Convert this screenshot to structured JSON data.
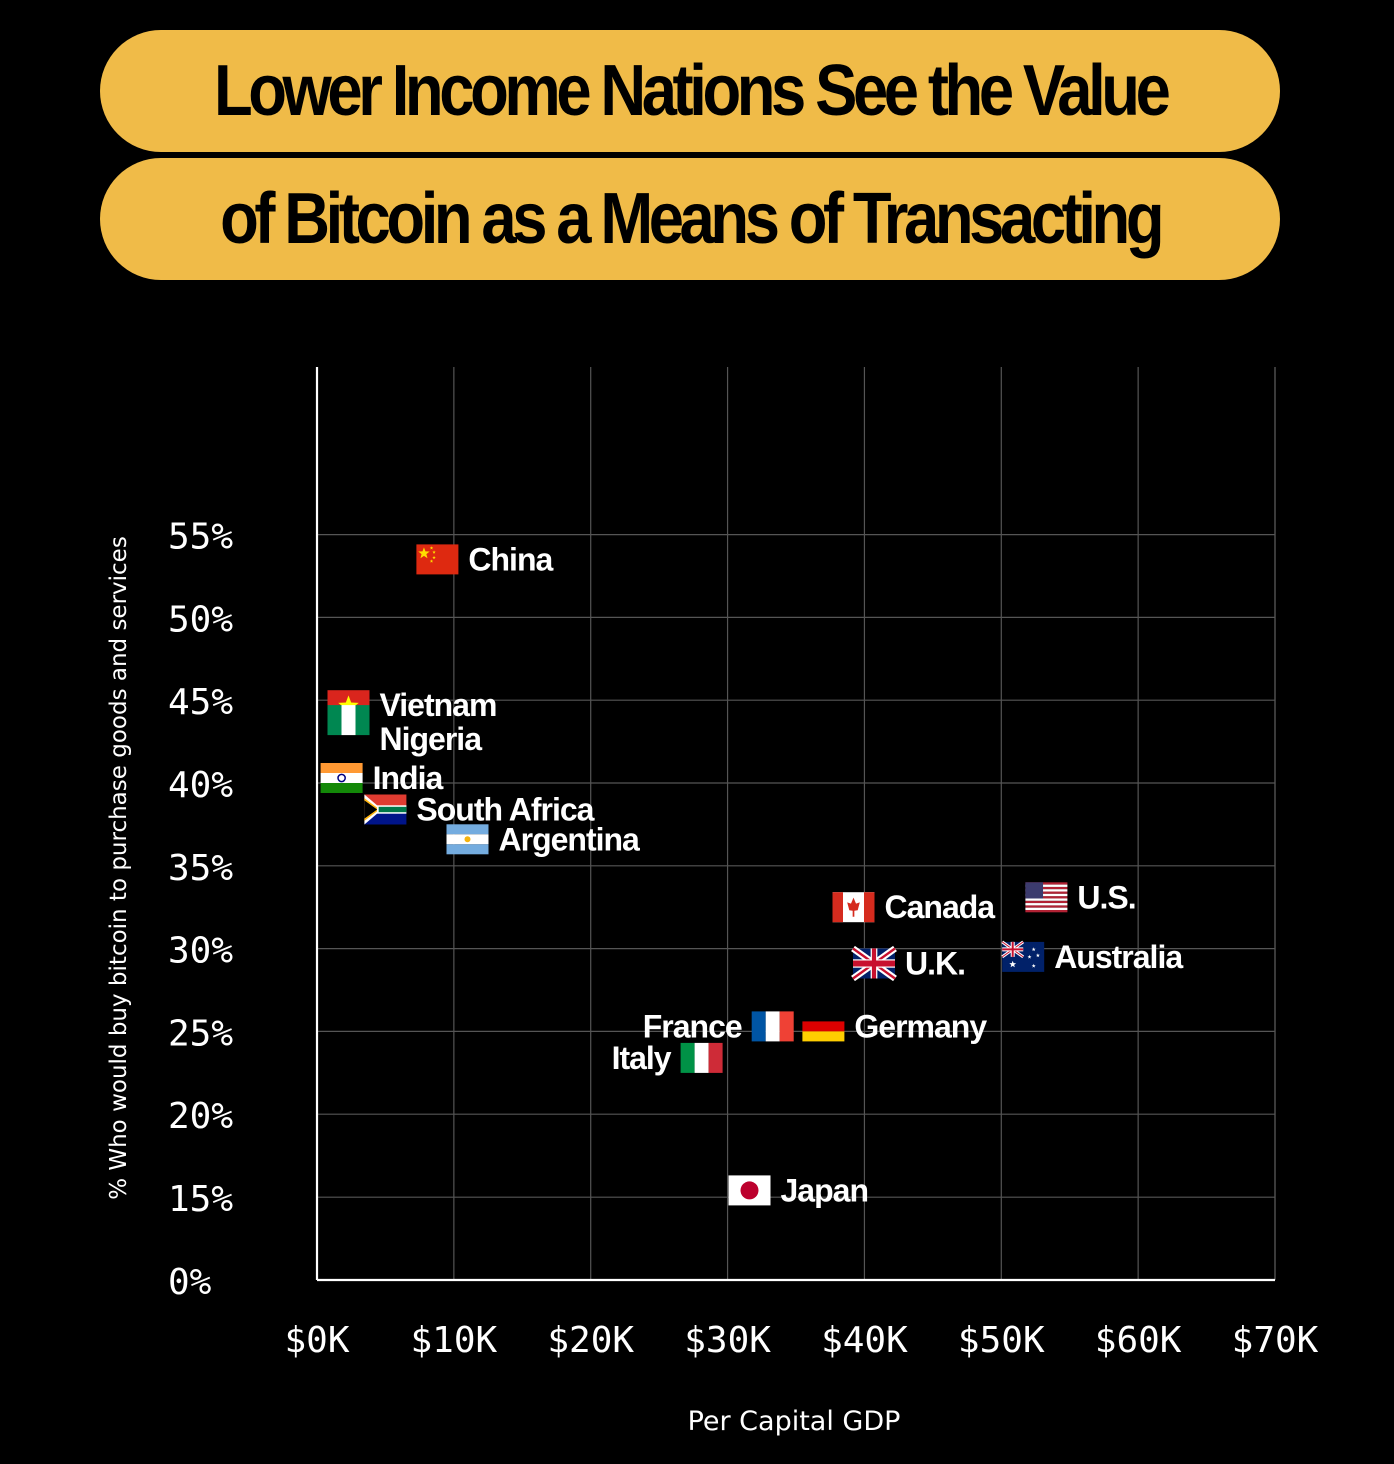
{
  "title_lines": [
    "Lower Income Nations See the Value",
    "of Bitcoin as a Means of Transacting"
  ],
  "colors": {
    "background": "#000000",
    "title_pill": "#f0bb48",
    "grid": "#555555",
    "text": "#ffffff"
  },
  "chart_data": {
    "type": "scatter",
    "xlabel": "Per Capital GDP",
    "ylabel": "% Who would buy bitcoin to purchase goods and services",
    "x_ticks": [
      "$0K",
      "$10K",
      "$20K",
      "$30K",
      "$40K",
      "$50K",
      "$60K",
      "$70K"
    ],
    "y_ticks": [
      "0%",
      "15%",
      "20%",
      "25%",
      "30%",
      "35%",
      "40%",
      "45%",
      "50%",
      "55%"
    ],
    "xlim": [
      0,
      70000
    ],
    "y_axis_note": "axis breaks between 0% and 15%",
    "grid": true,
    "points": [
      {
        "label": "China",
        "flag": "china-flag",
        "x": 8800,
        "y": 53.5
      },
      {
        "label": "Vietnam",
        "flag": "vietnam-flag",
        "x": 2300,
        "y": 44.7
      },
      {
        "label": "Nigeria",
        "flag": "nigeria-flag",
        "x": 2300,
        "y": 43.8
      },
      {
        "label": "India",
        "flag": "india-flag",
        "x": 1800,
        "y": 40.3
      },
      {
        "label": "South Africa",
        "flag": "south-africa-flag",
        "x": 5000,
        "y": 38.4
      },
      {
        "label": "Argentina",
        "flag": "argentina-flag",
        "x": 11000,
        "y": 36.6
      },
      {
        "label": "Canada",
        "flag": "canada-flag",
        "x": 39200,
        "y": 32.5
      },
      {
        "label": "U.S.",
        "flag": "us-flag",
        "x": 53300,
        "y": 33.1
      },
      {
        "label": "U.K.",
        "flag": "uk-flag",
        "x": 40700,
        "y": 29.1
      },
      {
        "label": "Australia",
        "flag": "australia-flag",
        "x": 51600,
        "y": 29.5
      },
      {
        "label": "France",
        "flag": "france-flag",
        "x": 33300,
        "y": 25.3
      },
      {
        "label": "Germany",
        "flag": "germany-flag",
        "x": 37000,
        "y": 25.3
      },
      {
        "label": "Italy",
        "flag": "italy-flag",
        "x": 28100,
        "y": 23.4
      },
      {
        "label": "Japan",
        "flag": "japan-flag",
        "x": 31600,
        "y": 15.4
      }
    ]
  }
}
